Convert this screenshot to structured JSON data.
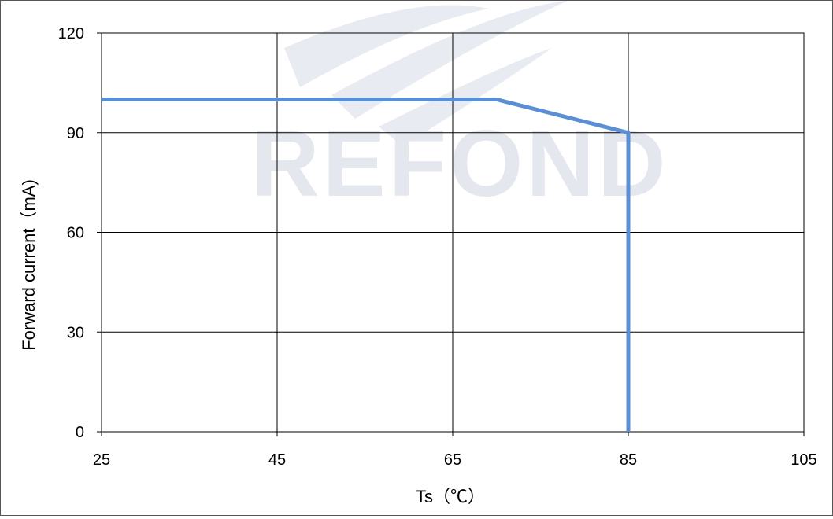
{
  "watermark": "REFOND",
  "chart_data": {
    "type": "line",
    "title": "",
    "xlabel": "Ts（℃）",
    "ylabel": "Forward current（mA)",
    "xlim": [
      25,
      105
    ],
    "ylim": [
      0,
      120
    ],
    "x_ticks": [
      "25",
      "45",
      "65",
      "85",
      "105"
    ],
    "y_ticks": [
      "0",
      "30",
      "60",
      "90",
      "120"
    ],
    "grid": true,
    "legend": "none",
    "series": [
      {
        "color": "#5a8fd6",
        "points": [
          {
            "x": 25,
            "y": 100
          },
          {
            "x": 70,
            "y": 100
          },
          {
            "x": 85,
            "y": 90
          },
          {
            "x": 85,
            "y": 0
          }
        ]
      }
    ]
  }
}
